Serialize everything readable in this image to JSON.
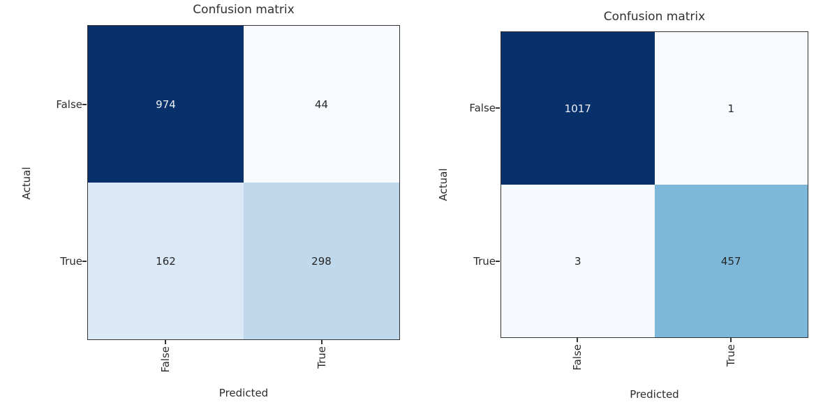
{
  "figure": {
    "background": "#ffffff"
  },
  "chart_data": [
    {
      "type": "heatmap",
      "title": "Confusion matrix",
      "xlabel": "Predicted",
      "ylabel": "Actual",
      "x_categories": [
        "False",
        "True"
      ],
      "y_categories": [
        "False",
        "True"
      ],
      "matrix": [
        [
          974,
          44
        ],
        [
          162,
          298
        ]
      ],
      "colormap": "Blues",
      "cell_colors": [
        [
          "#08306b",
          "#f7fbff"
        ],
        [
          "#dbe8f5",
          "#c0d8ec"
        ]
      ],
      "cell_text_colors": [
        [
          "#eef0f5",
          "#262626"
        ],
        [
          "#262626",
          "#262626"
        ]
      ]
    },
    {
      "type": "heatmap",
      "title": "Confusion matrix",
      "xlabel": "Predicted",
      "ylabel": "Actual",
      "x_categories": [
        "False",
        "True"
      ],
      "y_categories": [
        "False",
        "True"
      ],
      "matrix": [
        [
          1017,
          1
        ],
        [
          3,
          457
        ]
      ],
      "colormap": "Blues",
      "cell_colors": [
        [
          "#08306b",
          "#f7fbff"
        ],
        [
          "#f6fafe",
          "#7db8da"
        ]
      ],
      "cell_text_colors": [
        [
          "#eef0f5",
          "#262626"
        ],
        [
          "#262626",
          "#262626"
        ]
      ]
    }
  ]
}
